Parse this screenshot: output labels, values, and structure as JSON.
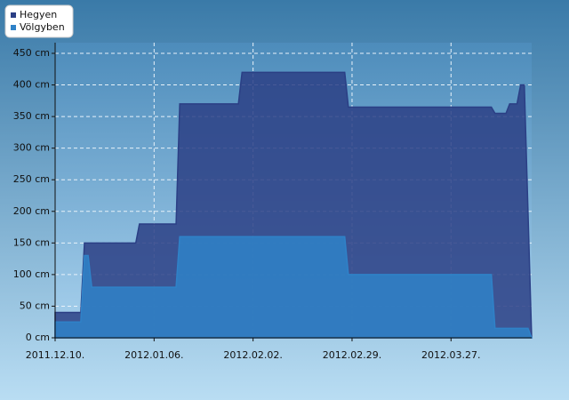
{
  "chart_data": {
    "type": "area",
    "x": [
      "2011.12.10.",
      "2011.12.17.",
      "2011.12.18.",
      "2011.12.19.",
      "2011.12.20.",
      "2012.01.01.",
      "2012.01.02.",
      "2012.01.12.",
      "2012.01.13.",
      "2012.01.29.",
      "2012.01.30.",
      "2012.02.27.",
      "2012.02.28.",
      "2012.04.07.",
      "2012.04.08.",
      "2012.04.11.",
      "2012.04.12.",
      "2012.04.14.",
      "2012.04.15.",
      "2012.04.16.",
      "2012.04.17.",
      "2012.04.18."
    ],
    "series": [
      {
        "name": "Hegyen",
        "color": "#2b3f85",
        "values": [
          40,
          40,
          150,
          150,
          150,
          150,
          180,
          180,
          370,
          370,
          420,
          420,
          365,
          365,
          355,
          355,
          370,
          370,
          400,
          400,
          200,
          0
        ]
      },
      {
        "name": "Völgyben",
        "color": "#2f82c8",
        "values": [
          25,
          25,
          130,
          130,
          80,
          80,
          80,
          80,
          160,
          160,
          160,
          160,
          100,
          100,
          15,
          15,
          15,
          15,
          15,
          15,
          15,
          0
        ]
      }
    ],
    "xlim": [
      "2011.12.10.",
      "2012.04.18."
    ],
    "xticks": [
      "2011.12.10.",
      "2012.01.06.",
      "2012.02.02.",
      "2012.02.29.",
      "2012.03.27."
    ],
    "ylim": [
      0,
      450
    ],
    "yticks": [
      {
        "value": 0,
        "label": "0 cm"
      },
      {
        "value": 50,
        "label": "50 cm"
      },
      {
        "value": 100,
        "label": "100 cm"
      },
      {
        "value": 150,
        "label": "150 cm"
      },
      {
        "value": 200,
        "label": "200 cm"
      },
      {
        "value": 250,
        "label": "250 cm"
      },
      {
        "value": 300,
        "label": "300 cm"
      },
      {
        "value": 350,
        "label": "350 cm"
      },
      {
        "value": 400,
        "label": "400 cm"
      },
      {
        "value": 450,
        "label": "450 cm"
      }
    ],
    "grid": true,
    "legend": "top-left"
  }
}
